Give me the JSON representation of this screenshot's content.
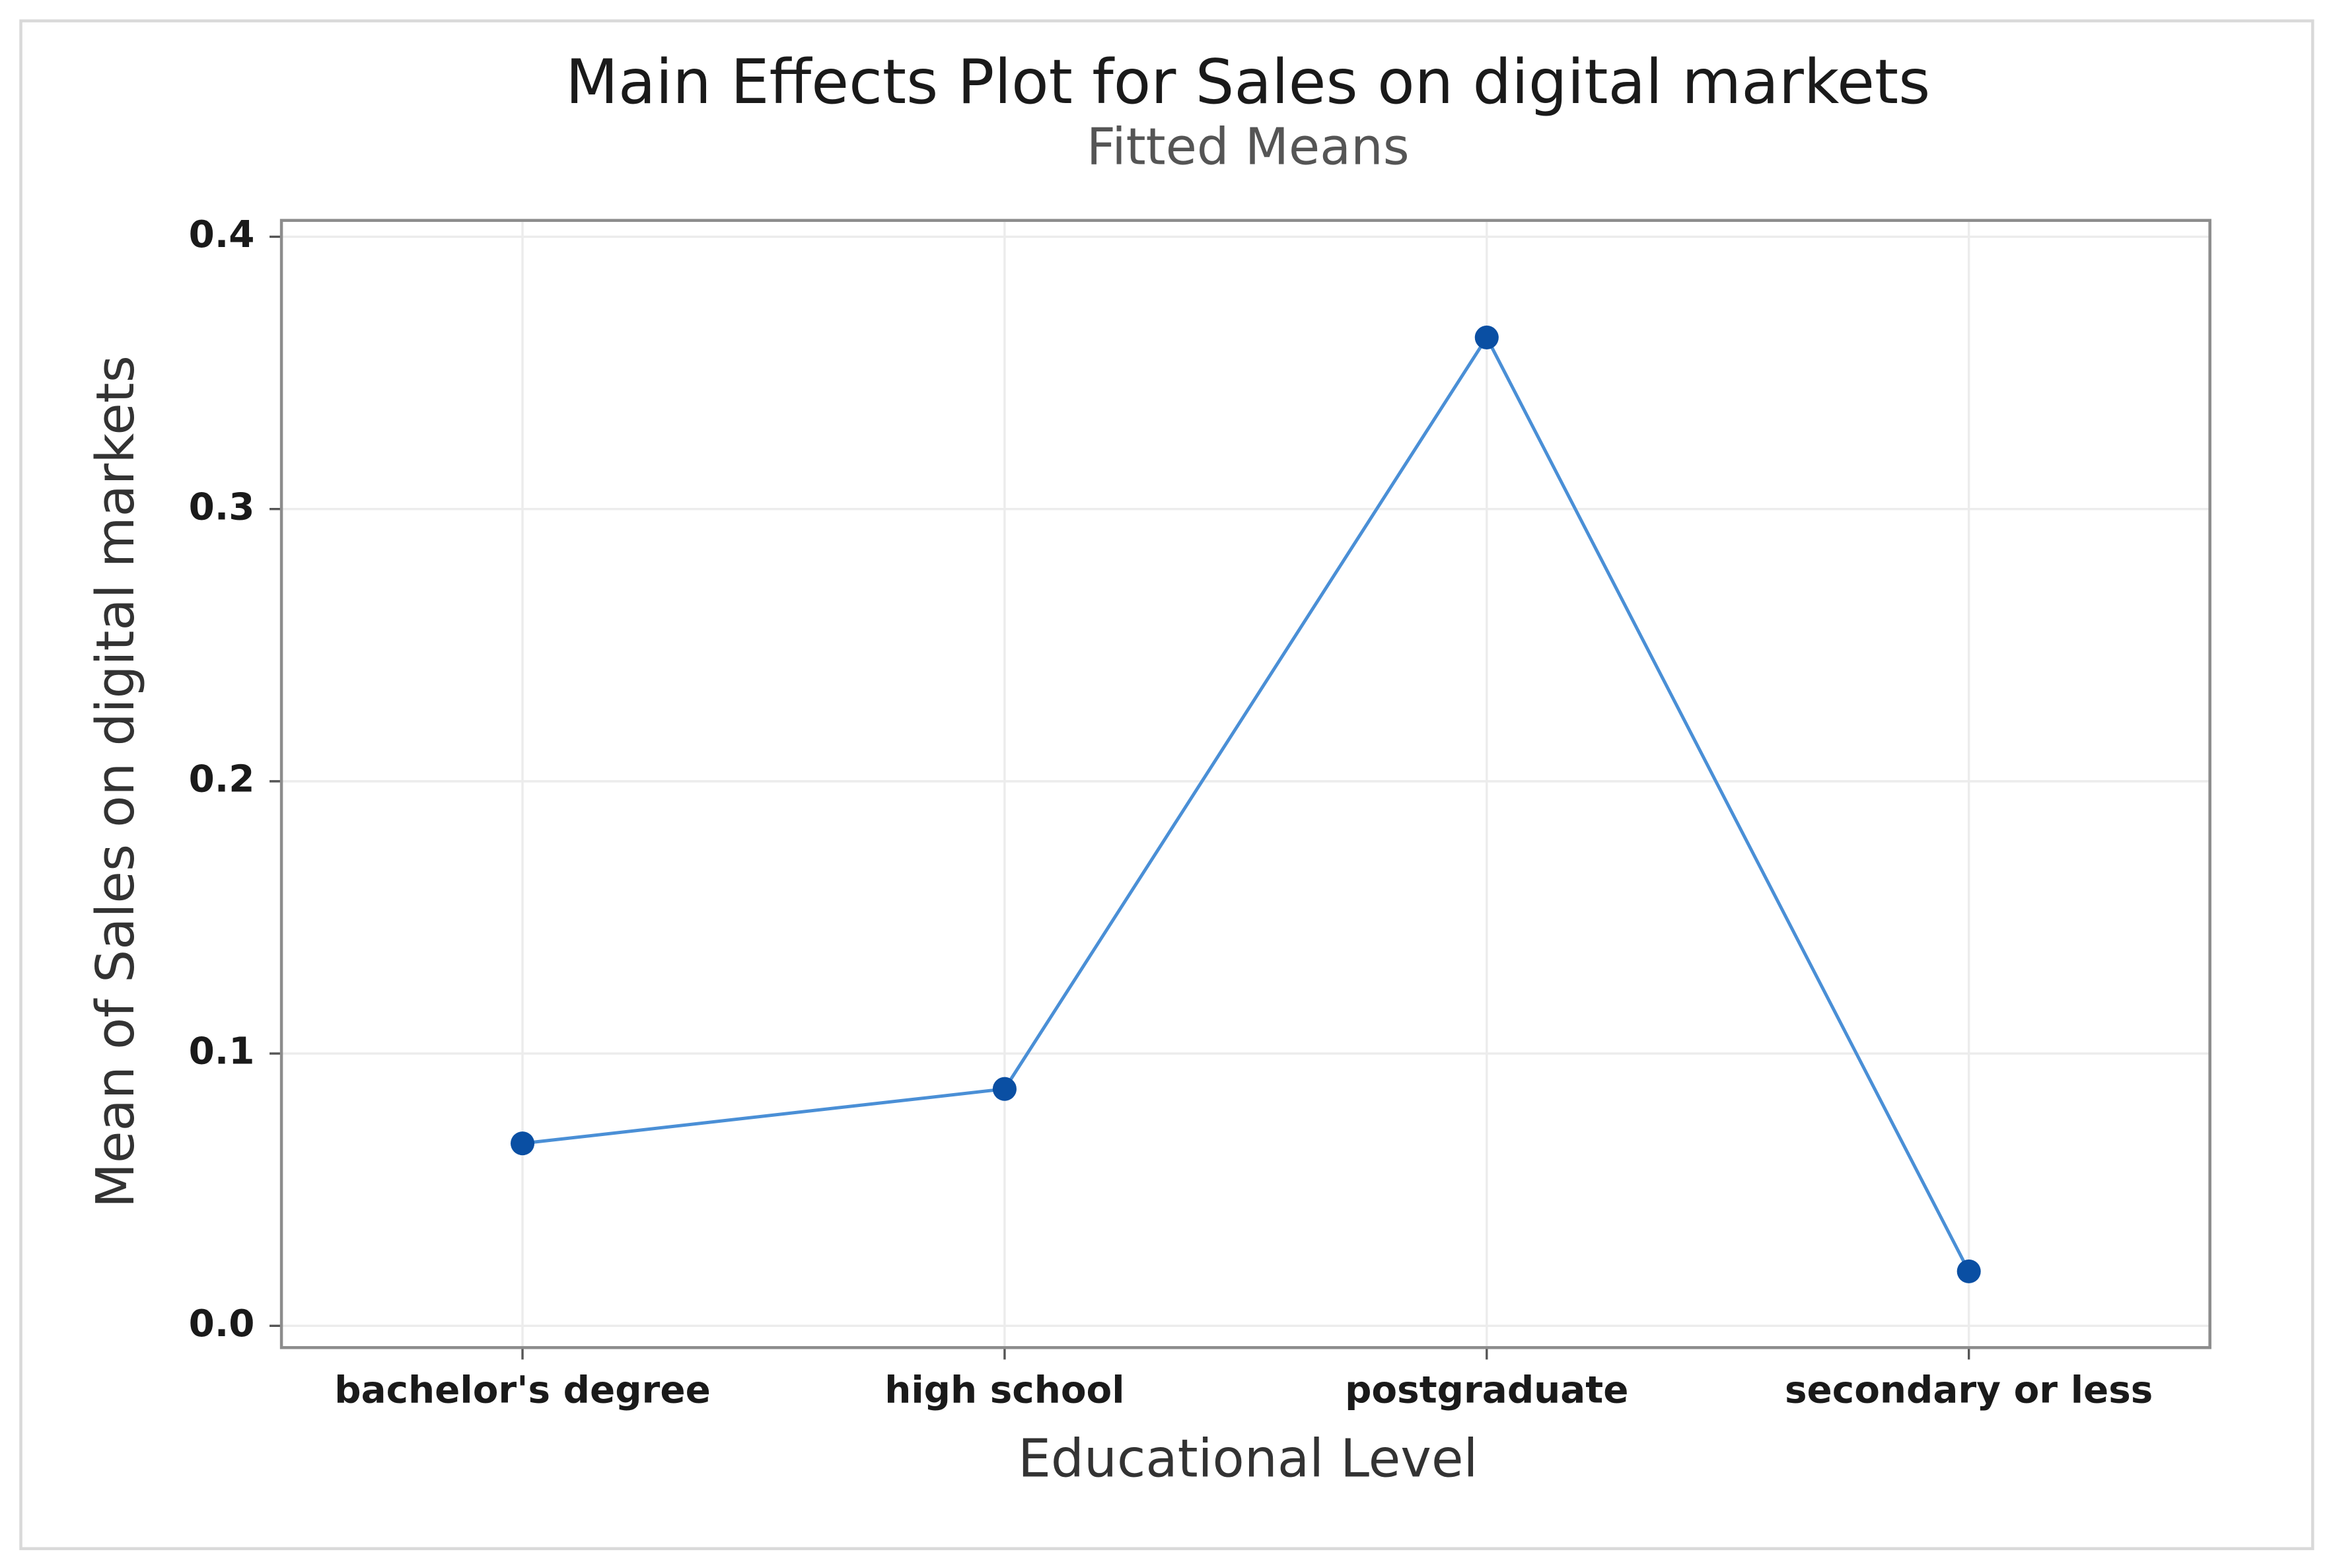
{
  "chart_data": {
    "type": "line",
    "title": "Main Effects Plot for Sales on digital markets",
    "subtitle": "Fitted Means",
    "x_label": "Educational Level",
    "y_label": "Mean of Sales on digital markets",
    "categories": [
      "bachelor's degree",
      "high school",
      "postgraduate",
      "secondary or less"
    ],
    "values": [
      0.067,
      0.087,
      0.363,
      0.02
    ],
    "color": "#4a8fd6",
    "marker_color": "#0a4fa3",
    "ylim": [
      -0.008,
      0.406
    ],
    "yticks": [
      {
        "value": 0,
        "label": "0.0"
      },
      0.1,
      0.2,
      0.3,
      0.4
    ],
    "grid": true
  }
}
